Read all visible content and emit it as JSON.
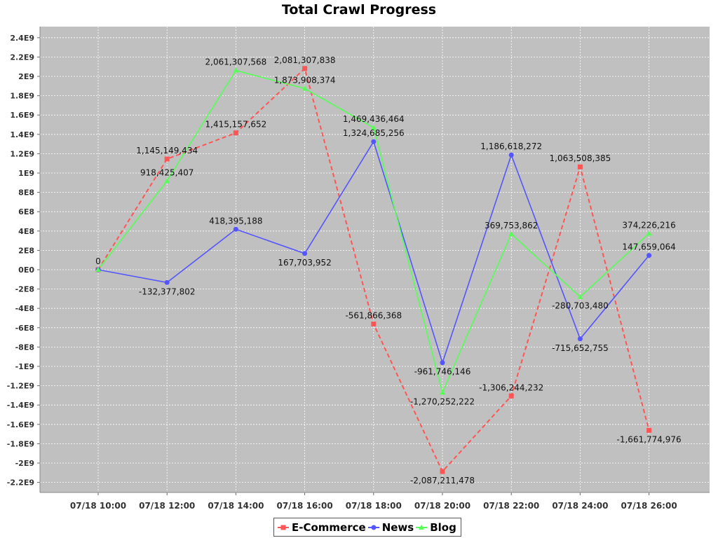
{
  "chart_data": {
    "type": "line",
    "title": "Total Crawl Progress",
    "xlabel": "",
    "ylabel": "",
    "categories": [
      "07/18 10:00",
      "07/18 12:00",
      "07/18 14:00",
      "07/18 16:00",
      "07/18 18:00",
      "07/18 20:00",
      "07/18 22:00",
      "07/18 24:00",
      "07/18 26:00"
    ],
    "ylim": [
      -2300000000,
      2450000000
    ],
    "yticks": [
      {
        "value": 2400000000,
        "label": "2.4E9"
      },
      {
        "value": 2200000000,
        "label": "2.2E9"
      },
      {
        "value": 2000000000,
        "label": "2E9"
      },
      {
        "value": 1800000000,
        "label": "1.8E9"
      },
      {
        "value": 1600000000,
        "label": "1.6E9"
      },
      {
        "value": 1400000000,
        "label": "1.4E9"
      },
      {
        "value": 1200000000,
        "label": "1.2E9"
      },
      {
        "value": 1000000000,
        "label": "1E9"
      },
      {
        "value": 800000000,
        "label": "8E8"
      },
      {
        "value": 600000000,
        "label": "6E8"
      },
      {
        "value": 400000000,
        "label": "4E8"
      },
      {
        "value": 200000000,
        "label": "2E8"
      },
      {
        "value": 0,
        "label": "0E0"
      },
      {
        "value": -200000000,
        "label": "-2E8"
      },
      {
        "value": -400000000,
        "label": "-4E8"
      },
      {
        "value": -600000000,
        "label": "-6E8"
      },
      {
        "value": -800000000,
        "label": "-8E8"
      },
      {
        "value": -1000000000,
        "label": "-1E9"
      },
      {
        "value": -1200000000,
        "label": "-1.2E9"
      },
      {
        "value": -1400000000,
        "label": "-1.4E9"
      },
      {
        "value": -1600000000,
        "label": "-1.6E9"
      },
      {
        "value": -1800000000,
        "label": "-1.8E9"
      },
      {
        "value": -2000000000,
        "label": "-2E9"
      },
      {
        "value": -2200000000,
        "label": "-2.2E9"
      }
    ],
    "grid": true,
    "legend_position": "bottom",
    "background": "#c0c0c0",
    "series": [
      {
        "name": "E-Commerce",
        "color": "#ff5555",
        "dashed": true,
        "marker": "square",
        "values": [
          0,
          1145149434,
          1415157652,
          2081307838,
          -561866368,
          -2087211478,
          -1306244232,
          1063508385,
          -1661774976
        ],
        "labels": [
          "0",
          "1,145,149,434",
          "1,415,157,652",
          "2,081,307,838",
          "-561,866,368",
          "-2,087,211,478",
          "-1,306,244,232",
          "1,063,508,385",
          "-1,661,774,976"
        ]
      },
      {
        "name": "News",
        "color": "#5555ff",
        "dashed": false,
        "marker": "circle",
        "values": [
          0,
          -132377802,
          418395188,
          167703952,
          1324685256,
          -961746146,
          1186618272,
          -715652755,
          147659064
        ],
        "labels": [
          "",
          "-132,377,802",
          "418,395,188",
          "167,703,952",
          "1,324,685,256",
          "-961,746,146",
          "1,186,618,272",
          "-715,652,755",
          "147,659,064"
        ]
      },
      {
        "name": "Blog",
        "color": "#55ff55",
        "dashed": false,
        "marker": "triangle",
        "values": [
          0,
          918425407,
          2061307568,
          1873908374,
          1469436464,
          -1270252222,
          369753862,
          -280703480,
          374226216
        ],
        "labels": [
          "",
          "918,425,407",
          "2,061,307,568",
          "1,873,908,374",
          "1,469,436,464",
          "-1,270,252,222",
          "369,753,862",
          "-280,703,480",
          "374,226,216"
        ]
      }
    ]
  }
}
